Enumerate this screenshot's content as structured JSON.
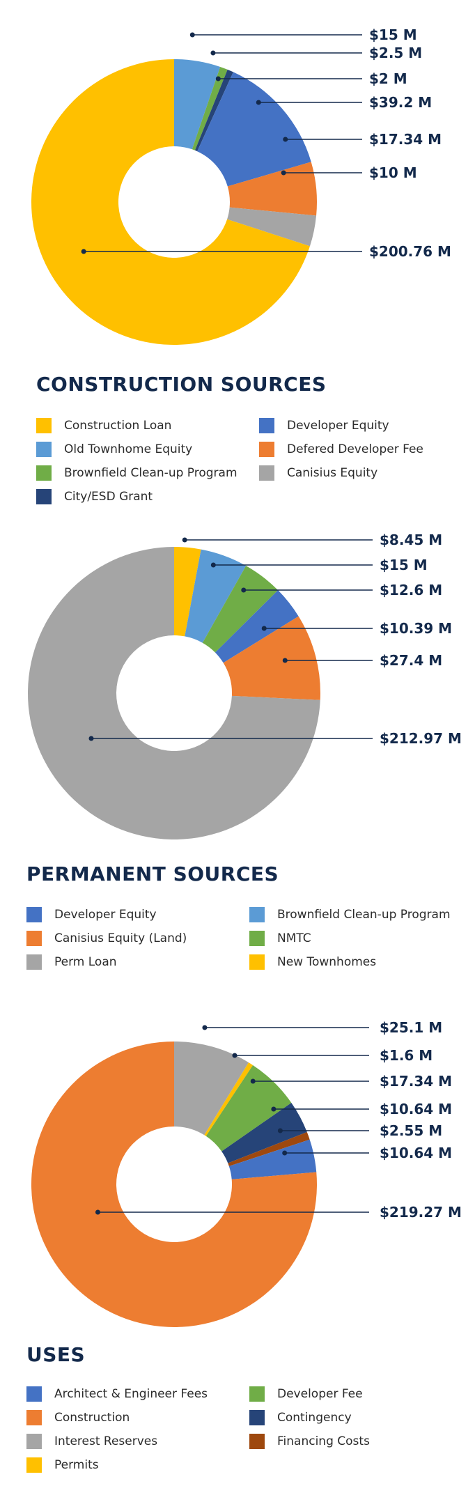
{
  "chart_data": [
    {
      "type": "pie",
      "variant": "donut",
      "title": "CONSTRUCTION SOURCES",
      "slices": [
        {
          "label": "Old Townhome Equity",
          "value": 15,
          "display": "$15 M",
          "color": "#5b9bd5"
        },
        {
          "label": "Brownfield Clean-up Program",
          "value": 2.5,
          "display": "$2.5 M",
          "color": "#70ad47"
        },
        {
          "label": "City/ESD Grant",
          "value": 2,
          "display": "$2 M",
          "color": "#264478"
        },
        {
          "label": "Developer Equity",
          "value": 39.2,
          "display": "$39.2 M",
          "color": "#4472c4"
        },
        {
          "label": "Defered Developer Fee",
          "value": 17.34,
          "display": "$17.34 M",
          "color": "#ed7d31"
        },
        {
          "label": "Canisius Equity",
          "value": 10,
          "display": "$10 M",
          "color": "#a5a5a5"
        },
        {
          "label": "Construction Loan",
          "value": 200.76,
          "display": "$200.76 M",
          "color": "#ffc000"
        }
      ],
      "legend_order": [
        6,
        3,
        0,
        4,
        1,
        5,
        2
      ]
    },
    {
      "type": "pie",
      "variant": "donut",
      "title": "PERMANENT SOURCES",
      "slices": [
        {
          "label": "New Townhomes",
          "value": 8.45,
          "display": "$8.45 M",
          "color": "#ffc000"
        },
        {
          "label": "Brownfield Clean-up Program",
          "value": 15,
          "display": "$15 M",
          "color": "#5b9bd5"
        },
        {
          "label": "NMTC",
          "value": 12.6,
          "display": "$12.6 M",
          "color": "#70ad47"
        },
        {
          "label": "Developer Equity",
          "value": 10.39,
          "display": "$10.39 M",
          "color": "#4472c4"
        },
        {
          "label": "Canisius Equity (Land)",
          "value": 27.4,
          "display": "$27.4 M",
          "color": "#ed7d31"
        },
        {
          "label": "Perm Loan",
          "value": 212.97,
          "display": "$212.97 M",
          "color": "#a5a5a5"
        }
      ],
      "legend_order": [
        3,
        1,
        4,
        2,
        5,
        0
      ]
    },
    {
      "type": "pie",
      "variant": "donut",
      "title": "USES",
      "slices": [
        {
          "label": "Interest Reserves",
          "value": 25.1,
          "display": "$25.1 M",
          "color": "#a5a5a5"
        },
        {
          "label": "Permits",
          "value": 1.6,
          "display": "$1.6 M",
          "color": "#ffc000"
        },
        {
          "label": "Developer Fee",
          "value": 17.34,
          "display": "$17.34 M",
          "color": "#70ad47"
        },
        {
          "label": "Contingency",
          "value": 10.64,
          "display": "$10.64 M",
          "color": "#264478"
        },
        {
          "label": "Financing Costs",
          "value": 2.55,
          "display": "$2.55 M",
          "color": "#9e480e"
        },
        {
          "label": "Architect & Engineer Fees",
          "value": 10.64,
          "display": "$10.64 M",
          "color": "#4472c4"
        },
        {
          "label": "Construction",
          "value": 219.27,
          "display": "$219.27 M",
          "color": "#ed7d31"
        }
      ],
      "legend_order": [
        5,
        2,
        6,
        3,
        0,
        4,
        1
      ]
    }
  ]
}
